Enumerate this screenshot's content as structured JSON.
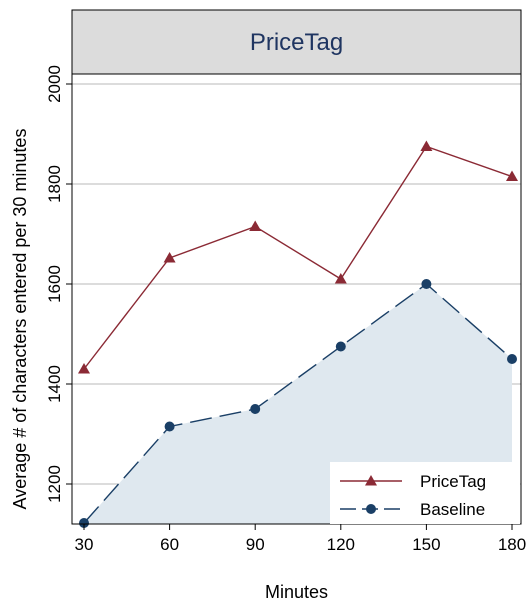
{
  "chart_data": {
    "type": "line",
    "title": "PriceTag",
    "xlabel": "Minutes",
    "ylabel": "Average # of characters entered per 30 minutes",
    "x": [
      30,
      60,
      90,
      120,
      150,
      180
    ],
    "xlim": [
      30,
      180
    ],
    "ylim": [
      1120,
      2020
    ],
    "yticks": [
      1200,
      1400,
      1600,
      1800,
      2000
    ],
    "grid": true,
    "legend_position": "bottom-right",
    "series": [
      {
        "name": "PriceTag",
        "values": [
          1430,
          1652,
          1715,
          1610,
          1875,
          1815
        ],
        "color": "#8b2a35",
        "marker": "triangle",
        "dash": "solid"
      },
      {
        "name": "Baseline",
        "values": [
          1122,
          1315,
          1350,
          1475,
          1600,
          1450
        ],
        "color": "#1a3f66",
        "marker": "circle",
        "dash": "long-dash",
        "fill": "#dfe8ef"
      }
    ]
  }
}
